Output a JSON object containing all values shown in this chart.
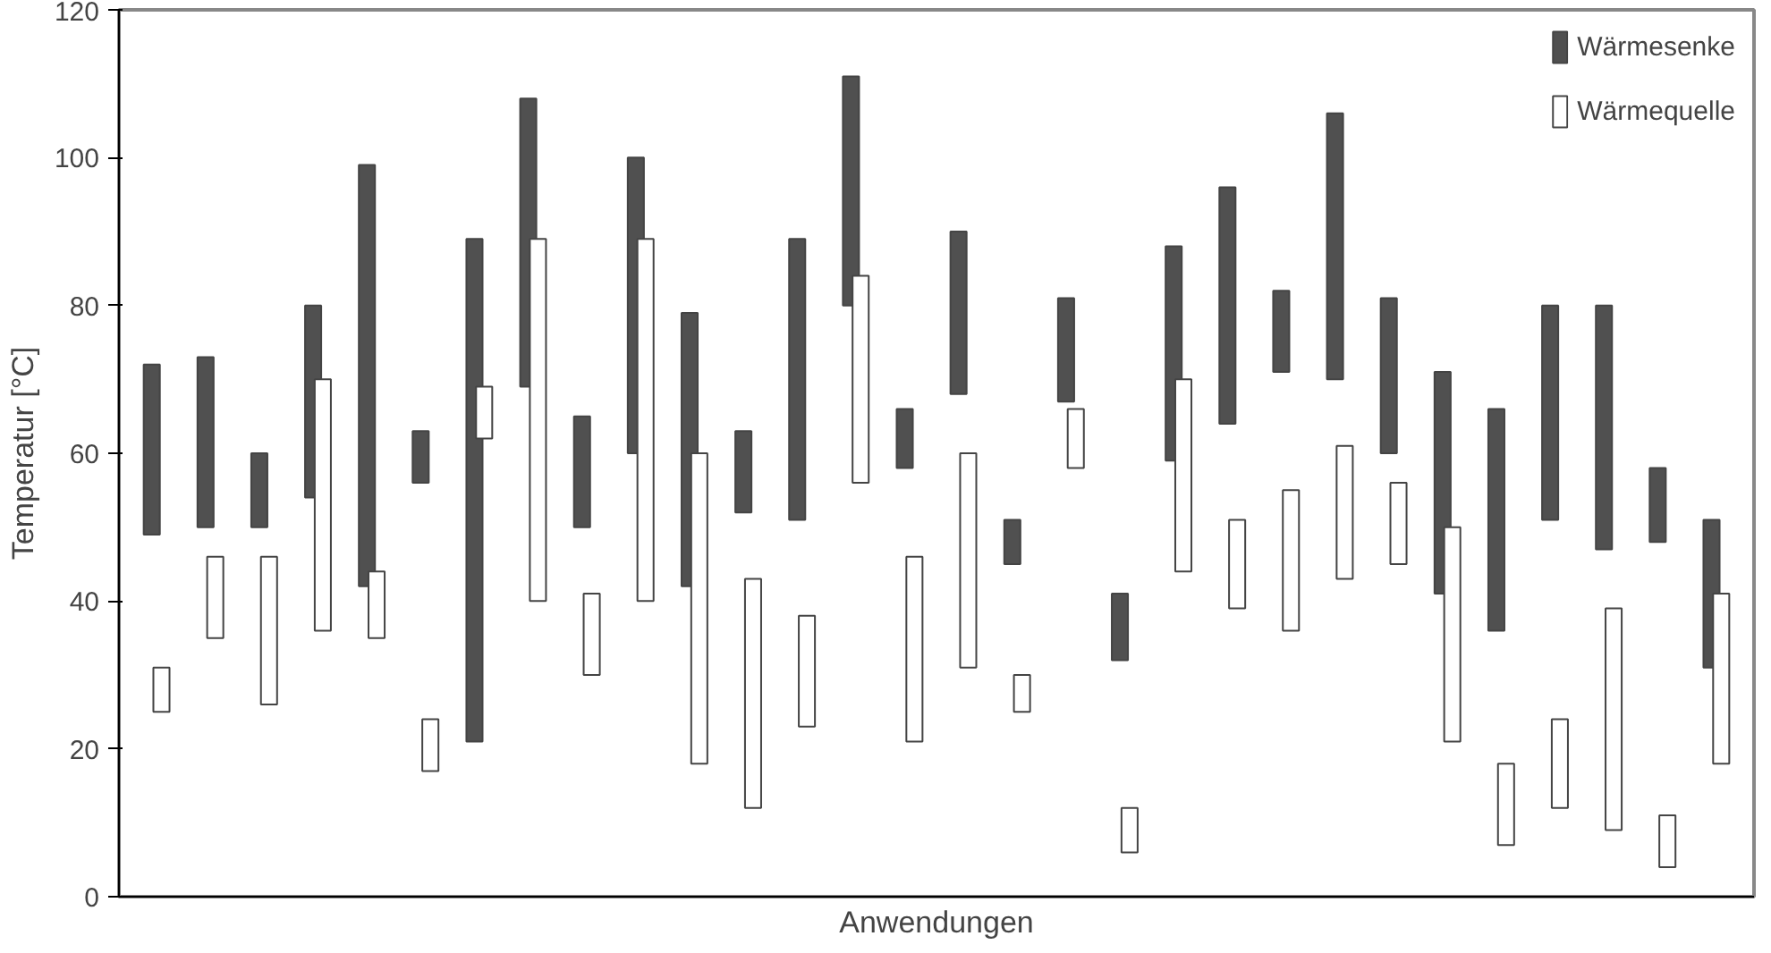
{
  "chart_data": {
    "type": "bar",
    "xlabel": "Anwendungen",
    "ylabel": "Temperatur [°C]",
    "categories": [
      null,
      null,
      null,
      null,
      null,
      null,
      null,
      null,
      null,
      null,
      null,
      null,
      null,
      null,
      null,
      null,
      null,
      null,
      null,
      null,
      null,
      null,
      null,
      null,
      null,
      null,
      null,
      null,
      null,
      null
    ],
    "series": [
      {
        "name": "Wärmesenke",
        "color": "#505050",
        "base": [
          49,
          50,
          50,
          54,
          42,
          56,
          21,
          69,
          50,
          60,
          42,
          52,
          51,
          80,
          58,
          68,
          45,
          67,
          32,
          59,
          64,
          71,
          70,
          60,
          41,
          36,
          51,
          47,
          48,
          31
        ],
        "values": [
          23,
          23,
          10,
          26,
          57,
          7,
          68,
          39,
          15,
          40,
          37,
          11,
          38,
          31,
          8,
          22,
          6,
          14,
          9,
          29,
          32,
          11,
          36,
          21,
          30,
          30,
          29,
          33,
          10,
          20
        ]
      },
      {
        "name": "Wärmequelle",
        "color": "#ffffff",
        "base": [
          25,
          35,
          26,
          36,
          35,
          17,
          62,
          40,
          30,
          40,
          18,
          12,
          23,
          56,
          21,
          31,
          25,
          58,
          6,
          44,
          39,
          36,
          43,
          45,
          21,
          7,
          12,
          9,
          4,
          18
        ],
        "values": [
          6,
          11,
          20,
          34,
          9,
          7,
          7,
          49,
          11,
          49,
          42,
          31,
          15,
          28,
          25,
          29,
          5,
          8,
          6,
          26,
          12,
          19,
          18,
          11,
          29,
          11,
          12,
          30,
          7,
          23
        ]
      }
    ],
    "ylim": [
      0,
      120
    ],
    "yticks": [
      0,
      20,
      40,
      60,
      80,
      100,
      120
    ],
    "grid": false,
    "legend": "top right"
  }
}
